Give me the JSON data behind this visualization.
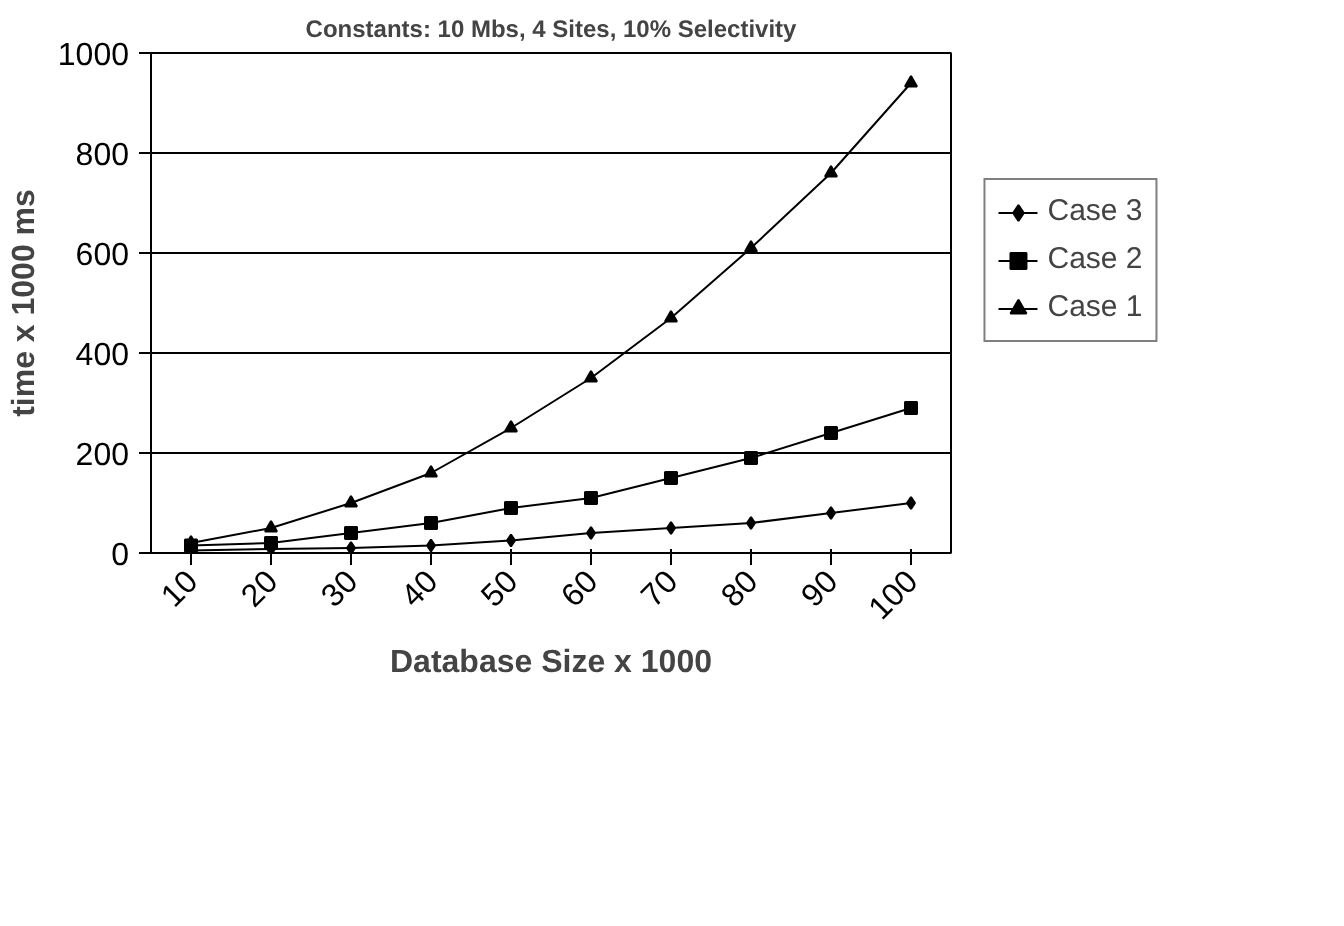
{
  "chart_data": {
    "type": "line",
    "title": "Constants: 10 Mbs, 4 Sites, 10% Selectivity",
    "xlabel": "Database Size x 1000",
    "ylabel": "time x 1000 ms",
    "categories": [
      "10",
      "20",
      "30",
      "40",
      "50",
      "60",
      "70",
      "80",
      "90",
      "100"
    ],
    "series": [
      {
        "name": "Case 3",
        "color": "#000000",
        "marker": "diamond",
        "values": [
          5,
          8,
          10,
          15,
          25,
          40,
          50,
          60,
          80,
          100
        ]
      },
      {
        "name": "Case 2",
        "color": "#000000",
        "marker": "square",
        "values": [
          15,
          20,
          40,
          60,
          90,
          110,
          150,
          190,
          240,
          290
        ]
      },
      {
        "name": "Case 1",
        "color": "#000000",
        "marker": "triangle",
        "values": [
          20,
          50,
          100,
          160,
          250,
          350,
          470,
          610,
          760,
          940
        ]
      }
    ],
    "ylim": [
      0,
      1000
    ],
    "yticks": [
      0,
      200,
      400,
      600,
      800,
      1000
    ],
    "grid": "y",
    "legend": "right",
    "line_style": "solid"
  }
}
